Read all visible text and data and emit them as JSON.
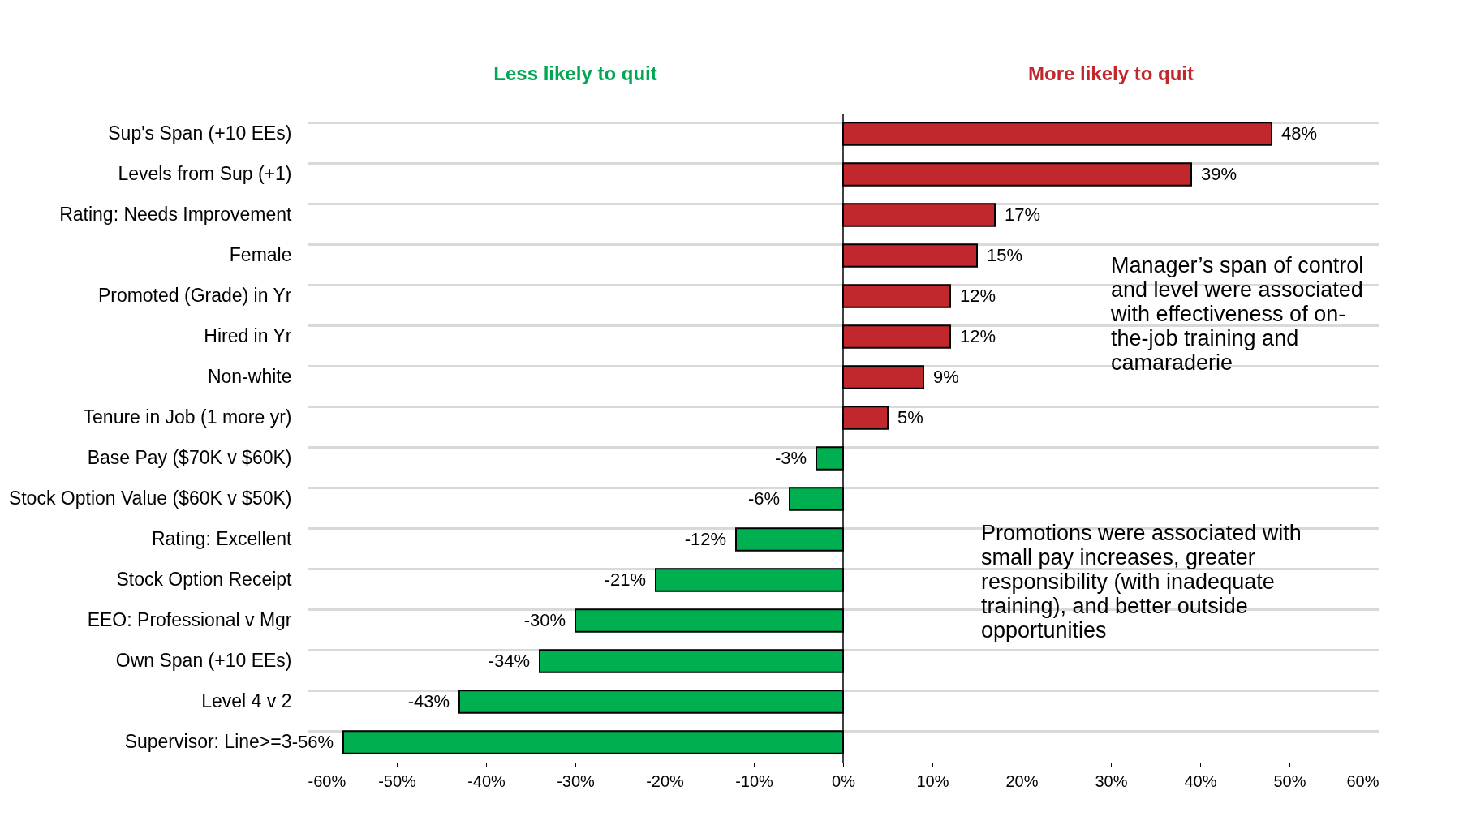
{
  "chart_data": {
    "type": "bar",
    "orientation": "horizontal",
    "categories": [
      "Sup's Span (+10 EEs)",
      "Levels from Sup (+1)",
      "Rating: Needs Improvement",
      "Female",
      "Promoted (Grade) in Yr",
      "Hired in Yr",
      "Non-white",
      "Tenure in Job (1 more yr)",
      "Base Pay ($70K v $60K)",
      "Stock Option Value ($60K v $50K)",
      "Rating: Excellent",
      "Stock Option Receipt",
      "EEO: Professional v Mgr",
      "Own Span (+10 EEs)",
      "Level 4 v 2",
      "Supervisor: Line>=3"
    ],
    "values": [
      48,
      39,
      17,
      15,
      12,
      12,
      9,
      5,
      -3,
      -6,
      -12,
      -21,
      -30,
      -34,
      -43,
      -56
    ],
    "value_labels": [
      "48%",
      "39%",
      "17%",
      "15%",
      "12%",
      "12%",
      "9%",
      "5%",
      "-3%",
      "-6%",
      "-12%",
      "-21%",
      "-30%",
      "-34%",
      "-43%",
      "-56%"
    ],
    "colors": [
      "#c0282d",
      "#c0282d",
      "#c0282d",
      "#c0282d",
      "#c0282d",
      "#c0282d",
      "#c0282d",
      "#c0282d",
      "#00b050",
      "#00b050",
      "#00b050",
      "#00b050",
      "#00b050",
      "#00b050",
      "#00b050",
      "#00b050"
    ],
    "xlim": [
      -60,
      60
    ],
    "xticks": [
      {
        "value": -60,
        "label": "-60%"
      },
      {
        "value": -50,
        "label": "-50%"
      },
      {
        "value": -40,
        "label": "-40%"
      },
      {
        "value": -30,
        "label": "-30%"
      },
      {
        "value": -20,
        "label": "-20%"
      },
      {
        "value": -10,
        "label": "-10%"
      },
      {
        "value": 0,
        "label": "0%"
      },
      {
        "value": 10,
        "label": "10%"
      },
      {
        "value": 20,
        "label": "20%"
      },
      {
        "value": 30,
        "label": "30%"
      },
      {
        "value": 40,
        "label": "40%"
      },
      {
        "value": 50,
        "label": "50%"
      },
      {
        "value": 60,
        "label": "60%"
      }
    ],
    "grid": "y",
    "ref_lines": [
      {
        "axis": "x",
        "value": 0,
        "color": "#000000"
      }
    ],
    "annotations": [
      "Less likely to quit",
      "More likely to quit",
      "Manager’s span of control and level were associated with effectiveness of on-the-job training and camaraderie",
      "Promotions were associated with small pay increases, greater responsibility (with inadequate training), and better outside opportunities"
    ]
  }
}
